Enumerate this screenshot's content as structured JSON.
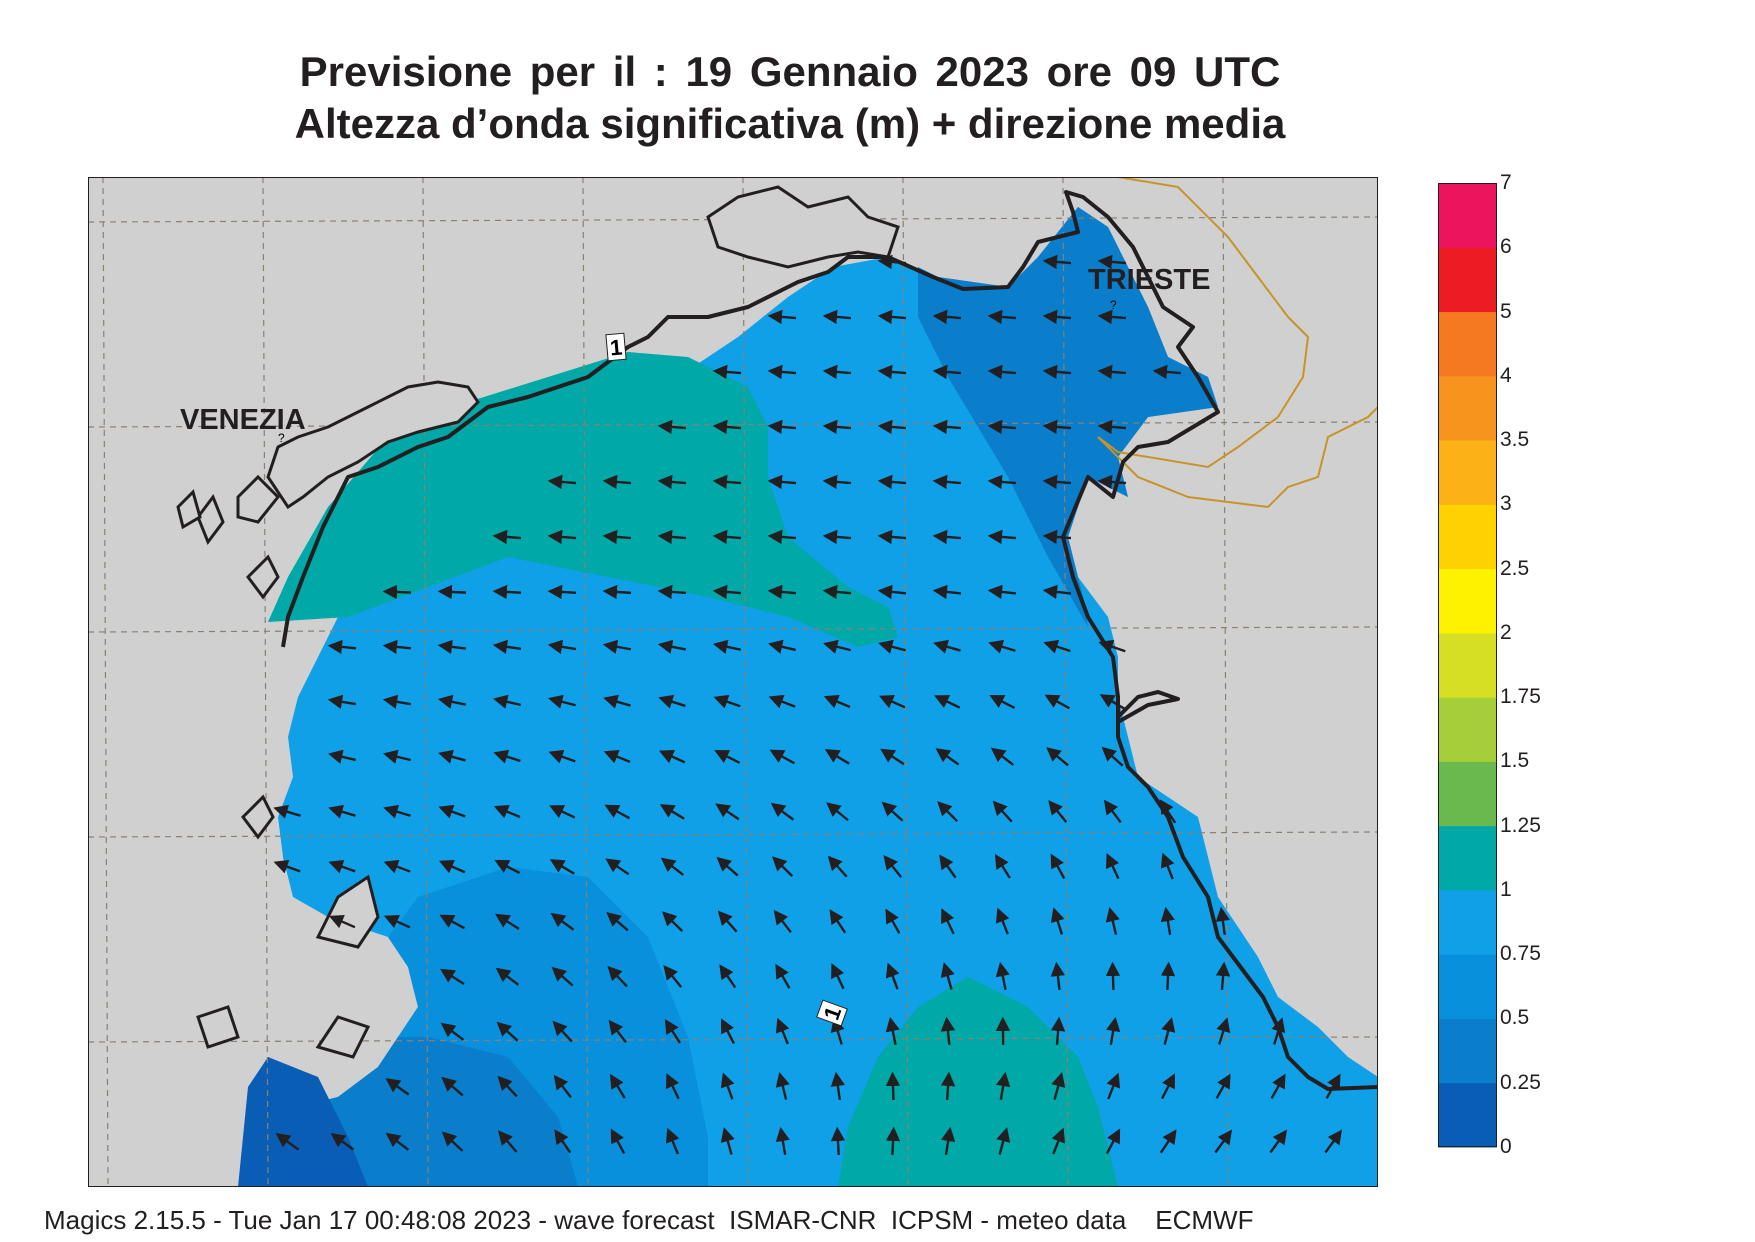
{
  "header": {
    "title_line1": "Previsione per il  :  19  Gennaio  2023   ore 09 UTC",
    "title_line2": "Altezza d’onda significativa (m) + direzione media"
  },
  "map": {
    "cities": [
      "VENEZIA",
      "TRIESTE"
    ],
    "contour_labels": [
      "1",
      "1"
    ],
    "colors": {
      "land": "#d0d0d0",
      "coast": "#231f20",
      "border": "#c8932a",
      "grid": "#8a8070",
      "arrow": "#231f20"
    }
  },
  "legend": {
    "levels": [
      "0",
      "0.25",
      "0.5",
      "0.75",
      "1",
      "1.25",
      "1.5",
      "1.75",
      "2",
      "2.5",
      "3",
      "3.5",
      "4",
      "5",
      "6",
      "7"
    ],
    "colors": [
      "#0a5db5",
      "#0a7dcb",
      "#0890dd",
      "#10a0e8",
      "#00a8a8",
      "#6ab94e",
      "#a6ce39",
      "#d6df23",
      "#fff200",
      "#ffd200",
      "#fbb216",
      "#f7941d",
      "#f47920",
      "#ed1c24",
      "#ec145c"
    ]
  },
  "footer": {
    "text": "Magics 2.15.5 - Tue Jan 17 00:48:08 2023 - wave forecast  ISMAR-CNR  ICPSM - meteo data    ECMWF"
  }
}
